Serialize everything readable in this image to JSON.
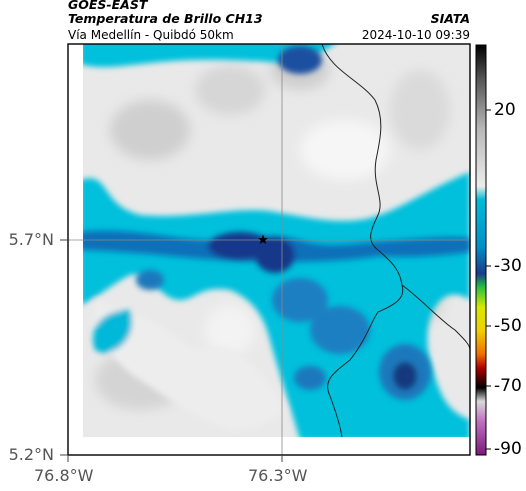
{
  "header": {
    "satellite": "GOES-EAST",
    "product": "Temperatura de Brillo CH13",
    "region": "Vía Medellín - Quibdó 50km",
    "brand": "SIATA",
    "timestamp": "2024-10-10 09:39"
  },
  "axes": {
    "lat_ticks": [
      "5.7°N",
      "5.2°N"
    ],
    "lon_ticks": [
      "76.8°W",
      "76.3°W"
    ]
  },
  "colorbar": {
    "ticks": [
      "20",
      "-30",
      "-50",
      "-70",
      "-90"
    ],
    "stops": [
      {
        "v": 30,
        "c": "#000000"
      },
      {
        "v": 20,
        "c": "#555555"
      },
      {
        "v": 5,
        "c": "#b8b8b8"
      },
      {
        "v": -12,
        "c": "#ececec"
      },
      {
        "v": -16,
        "c": "#00bcd8"
      },
      {
        "v": -30,
        "c": "#0090c8"
      },
      {
        "v": -38,
        "c": "#1b3c8c"
      },
      {
        "v": -42,
        "c": "#22c040"
      },
      {
        "v": -48,
        "c": "#d8e800"
      },
      {
        "v": -55,
        "c": "#f0d000"
      },
      {
        "v": -62,
        "c": "#f07000"
      },
      {
        "v": -66,
        "c": "#b00000"
      },
      {
        "v": -72,
        "c": "#000000"
      },
      {
        "v": -76,
        "c": "#d8d8d8"
      },
      {
        "v": -82,
        "c": "#c070c0"
      },
      {
        "v": -92,
        "c": "#7a1a7a"
      }
    ]
  },
  "legend_unit": "",
  "marker": {
    "name": "Medellín-Quibdó waypoint"
  }
}
